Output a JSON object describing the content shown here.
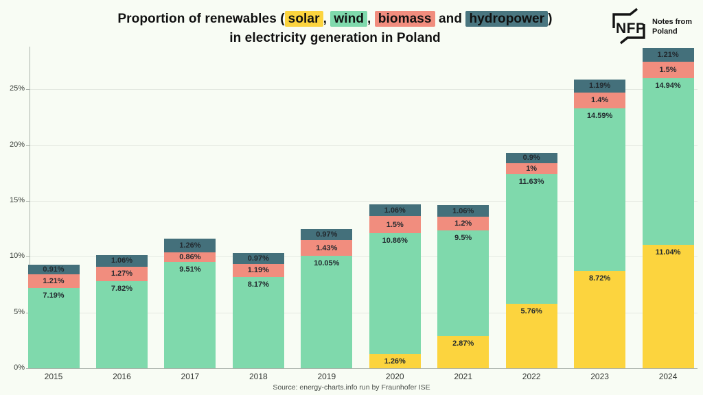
{
  "header": {
    "title": [
      "Proportion of renewables (",
      "solar",
      ", ",
      "wind",
      ", ",
      "biomass",
      " and ",
      "hydropower",
      ")"
    ],
    "title_line2": "in electricity generation in Poland"
  },
  "logo": {
    "abbr": "NFP",
    "name_line1": "Notes from",
    "name_line2": "Poland"
  },
  "chart_data": {
    "type": "bar",
    "stacked": true,
    "title": "Proportion of renewables (solar, wind, biomass and hydropower) in electricity generation in Poland",
    "categories": [
      "2015",
      "2016",
      "2017",
      "2018",
      "2019",
      "2020",
      "2021",
      "2022",
      "2023",
      "2024"
    ],
    "series": [
      {
        "name": "solar",
        "color": "#FCD43E",
        "values": [
          0,
          0,
          0,
          0,
          0,
          1.26,
          2.87,
          5.76,
          8.72,
          11.04
        ],
        "labels": [
          "",
          "",
          "",
          "",
          "",
          "1.26%",
          "2.87%",
          "5.76%",
          "8.72%",
          "11.04%"
        ]
      },
      {
        "name": "wind",
        "color": "#7FD9AC",
        "values": [
          7.19,
          7.82,
          9.51,
          8.17,
          10.05,
          10.86,
          9.5,
          11.63,
          14.59,
          14.94
        ],
        "labels": [
          "7.19%",
          "7.82%",
          "9.51%",
          "8.17%",
          "10.05%",
          "10.86%",
          "9.5%",
          "11.63%",
          "14.59%",
          "14.94%"
        ]
      },
      {
        "name": "biomass",
        "color": "#F18D7E",
        "values": [
          1.21,
          1.27,
          0.86,
          1.19,
          1.43,
          1.5,
          1.2,
          1.0,
          1.4,
          1.5
        ],
        "labels": [
          "1.21%",
          "1.27%",
          "0.86%",
          "1.19%",
          "1.43%",
          "1.5%",
          "1.2%",
          "1%",
          "1.4%",
          "1.5%"
        ]
      },
      {
        "name": "hydropower",
        "color": "#44707B",
        "values": [
          0.91,
          1.06,
          1.26,
          0.97,
          0.97,
          1.06,
          1.06,
          0.9,
          1.19,
          1.21
        ],
        "labels": [
          "0.91%",
          "1.06%",
          "1.26%",
          "0.97%",
          "0.97%",
          "1.06%",
          "1.06%",
          "0.9%",
          "1.19%",
          "1.21%"
        ]
      }
    ],
    "xlabel": "",
    "ylabel": "",
    "ylim": [
      0,
      29
    ],
    "grid": true,
    "legend_position": "inline-in-title",
    "yticks": [
      {
        "value": 0,
        "label": "0%"
      },
      {
        "value": 5,
        "label": "5%"
      },
      {
        "value": 10,
        "label": "10%"
      },
      {
        "value": 15,
        "label": "15%"
      },
      {
        "value": 20,
        "label": "20%"
      },
      {
        "value": 25,
        "label": "25%"
      }
    ]
  },
  "footer": {
    "source": "Source: energy-charts.info run by Fraunhofer ISE"
  }
}
